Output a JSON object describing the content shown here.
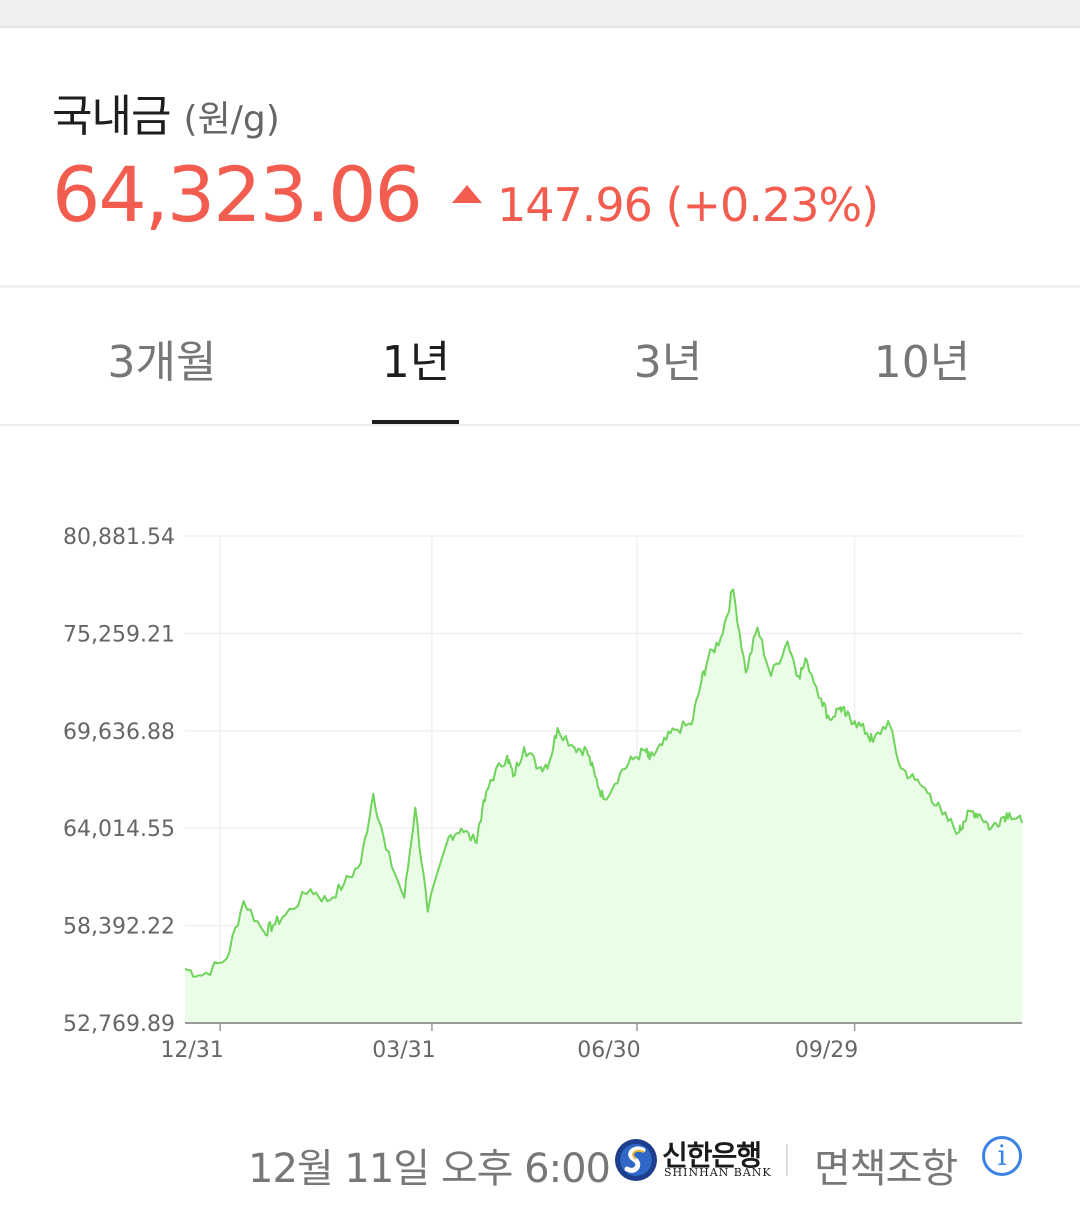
{
  "header": {
    "title": "국내금",
    "unit": "(원/g)",
    "price": "64,323.06",
    "change": "147.96 (+0.23%)",
    "change_direction": "up",
    "price_color": "#f25d50"
  },
  "tabs": [
    {
      "label": "3개월",
      "active": false
    },
    {
      "label": "1년",
      "active": true
    },
    {
      "label": "3년",
      "active": false
    },
    {
      "label": "10년",
      "active": false
    }
  ],
  "chart_data": {
    "type": "area",
    "series_color": "#70d35c",
    "fill_color": "#eafde6",
    "ylim": [
      52769.89,
      80881.54
    ],
    "yticks": [
      "80,881.54",
      "75,259.21",
      "69,636.88",
      "64,014.55",
      "58,392.22",
      "52,769.89"
    ],
    "xticks": [
      "12/31",
      "03/31",
      "06/30",
      "09/29"
    ],
    "grid": true,
    "x": [
      0,
      0.02,
      0.05,
      0.07,
      0.095,
      0.105,
      0.12,
      0.15,
      0.17,
      0.19,
      0.21,
      0.225,
      0.24,
      0.262,
      0.275,
      0.29,
      0.315,
      0.33,
      0.347,
      0.355,
      0.365,
      0.385,
      0.392,
      0.405,
      0.423,
      0.435,
      0.445,
      0.465,
      0.48,
      0.49,
      0.5,
      0.52,
      0.535,
      0.55,
      0.555,
      0.57,
      0.585,
      0.605,
      0.617,
      0.625,
      0.64,
      0.655,
      0.67,
      0.684,
      0.7,
      0.72,
      0.733,
      0.743,
      0.76,
      0.77,
      0.783,
      0.79,
      0.8,
      0.815,
      0.822,
      0.84,
      0.855,
      0.872,
      0.89,
      0.905,
      0.925,
      0.93,
      0.94,
      0.95,
      0.963,
      0.975,
      0.985,
      1.0
    ],
    "values": [
      55900,
      55500,
      56500,
      59800,
      58000,
      58400,
      59000,
      60500,
      59800,
      60800,
      62000,
      66000,
      62800,
      60000,
      65200,
      59200,
      63500,
      64000,
      63200,
      65000,
      66800,
      68200,
      67000,
      68700,
      67500,
      67800,
      69800,
      68700,
      68500,
      67000,
      65700,
      67200,
      68000,
      68500,
      68000,
      68800,
      69700,
      70000,
      72500,
      73800,
      75000,
      77800,
      73000,
      75600,
      72800,
      74800,
      72800,
      73700,
      71500,
      70300,
      71000,
      70500,
      70200,
      69500,
      69000,
      70200,
      67500,
      66800,
      66000,
      64800,
      63800,
      64400,
      65000,
      64800,
      64000,
      64600,
      64900,
      64323
    ]
  },
  "footer": {
    "timestamp": "12월 11일 오후 6:00",
    "bank_name": "신한은행",
    "bank_name_en": "SHINHAN BANK",
    "disclaimer": "면책조항",
    "info_icon_glyph": "i"
  }
}
